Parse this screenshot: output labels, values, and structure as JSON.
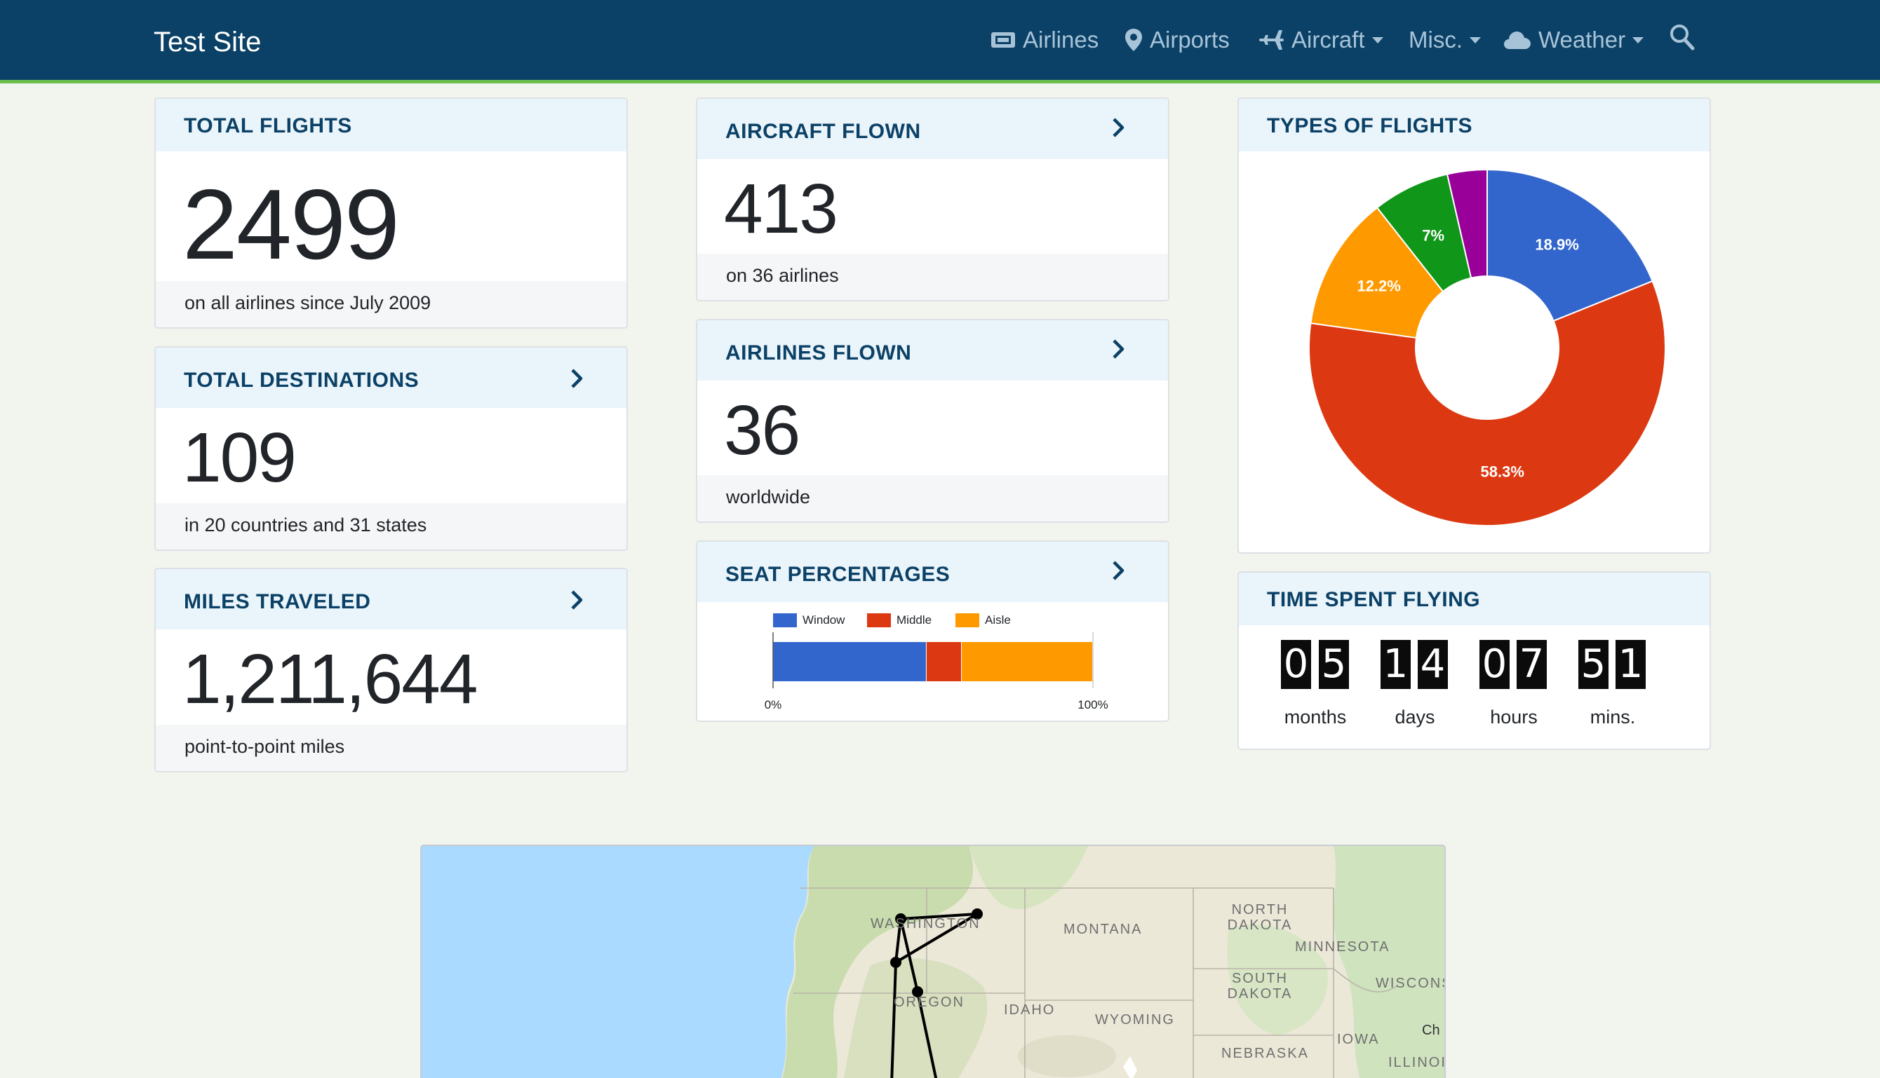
{
  "navbar": {
    "brand": "Test Site",
    "items": [
      {
        "label": "Airlines",
        "icon": "ticket-icon"
      },
      {
        "label": "Airports",
        "icon": "map-pin-icon"
      },
      {
        "label": "Aircraft",
        "icon": "airplane-icon",
        "dropdown": true
      },
      {
        "label": "Misc.",
        "dropdown": true
      },
      {
        "label": "Weather",
        "icon": "cloud-icon",
        "dropdown": true
      }
    ],
    "search_icon": "search-icon",
    "colors": {
      "background": "#0b4166",
      "accent_border": "#6bbf4e",
      "link": "#a7c3d8"
    }
  },
  "cards": {
    "total_flights": {
      "title": "TOTAL FLIGHTS",
      "value": "2499",
      "footer": "on all airlines since July 2009"
    },
    "total_destinations": {
      "title": "TOTAL DESTINATIONS",
      "value": "109",
      "footer": "in 20 countries and 31 states"
    },
    "miles_traveled": {
      "title": "MILES TRAVELED",
      "value": "1,211,644",
      "footer": "point-to-point miles"
    },
    "aircraft_flown": {
      "title": "AIRCRAFT FLOWN",
      "value": "413",
      "footer": "on 36 airlines"
    },
    "airlines_flown": {
      "title": "AIRLINES FLOWN",
      "value": "36",
      "footer": "worldwide"
    },
    "seat_percentages": {
      "title": "SEAT PERCENTAGES"
    },
    "types_of_flights": {
      "title": "TYPES OF FLIGHTS"
    },
    "time_spent_flying": {
      "title": "TIME SPENT FLYING",
      "units": [
        {
          "digits": "05",
          "label": "months"
        },
        {
          "digits": "14",
          "label": "days"
        },
        {
          "digits": "07",
          "label": "hours"
        },
        {
          "digits": "51",
          "label": "mins."
        }
      ]
    }
  },
  "chart_data": [
    {
      "type": "bar",
      "orientation": "horizontal-stacked",
      "series": [
        {
          "name": "Window",
          "values": [
            48
          ],
          "color": "#3366cc"
        },
        {
          "name": "Middle",
          "values": [
            11
          ],
          "color": "#dc3912"
        },
        {
          "name": "Aisle",
          "values": [
            41
          ],
          "color": "#ff9900"
        }
      ],
      "xlim": [
        0,
        100
      ],
      "tick_labels": [
        "0%",
        "100%"
      ],
      "legend_position": "top-left"
    },
    {
      "type": "pie",
      "style": "donut",
      "slices": [
        {
          "value": 18.9,
          "label": "18.9%",
          "color": "#3366cc"
        },
        {
          "value": 58.3,
          "label": "58.3%",
          "color": "#dc3912"
        },
        {
          "value": 12.2,
          "label": "12.2%",
          "color": "#ff9900"
        },
        {
          "value": 7.0,
          "label": "7%",
          "color": "#109618"
        },
        {
          "value": 3.6,
          "label": "",
          "color": "#990099"
        }
      ]
    }
  ],
  "map": {
    "labels": [
      "WASHINGTON",
      "MONTANA",
      "NORTH DAKOTA",
      "MINNESOTA",
      "SOUTH DAKOTA",
      "WISCONSIN",
      "OREGON",
      "IDAHO",
      "WYOMING",
      "IOWA",
      "NEBRASKA",
      "ILLINOIS",
      "Ch"
    ]
  }
}
